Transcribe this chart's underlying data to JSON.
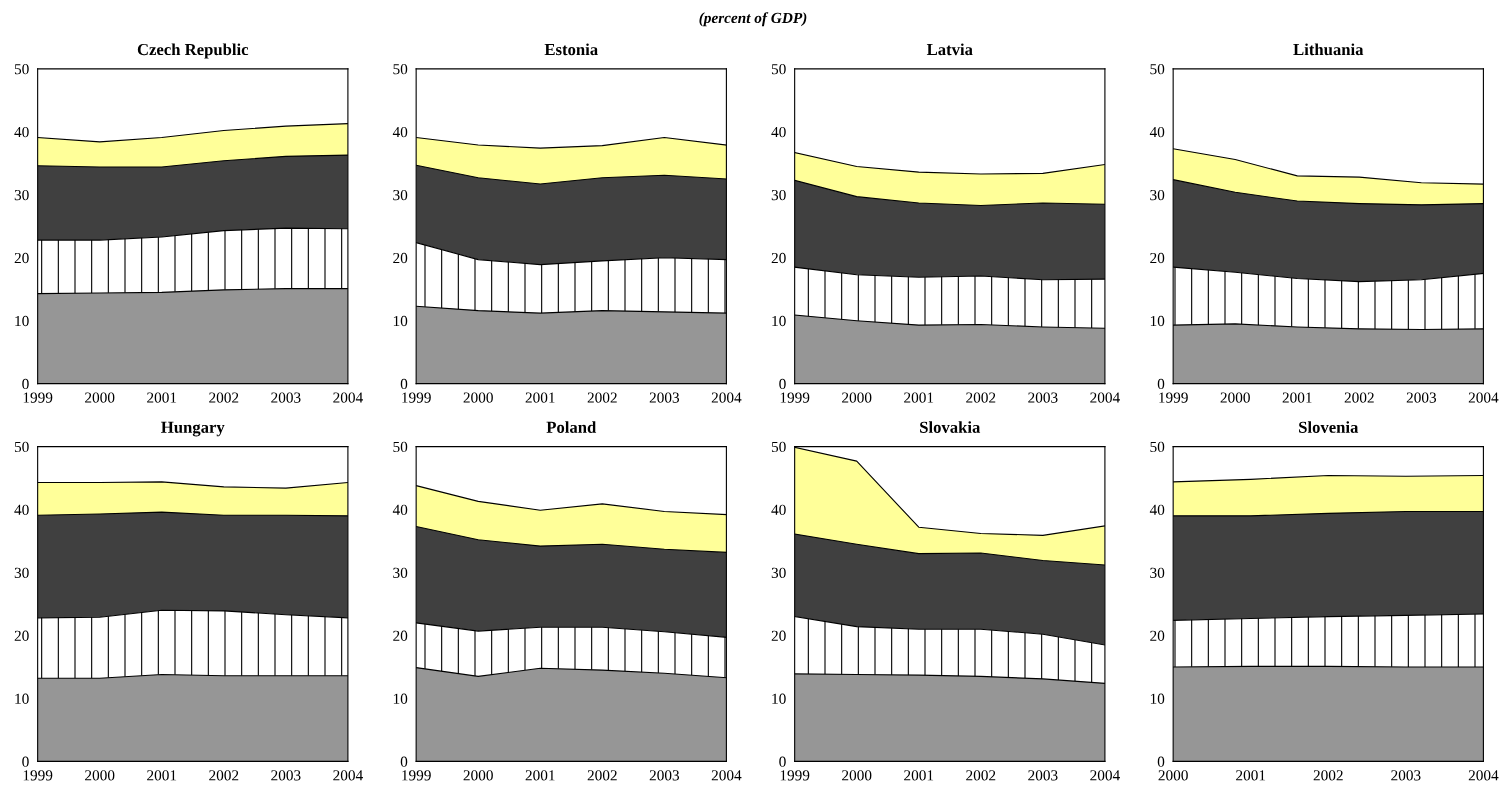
{
  "chart_data": [
    {
      "type": "area",
      "title": "Czech Republic",
      "stacked": true,
      "annotations": [
        "(percent of GDP)"
      ],
      "x": [
        1999,
        2000,
        2001,
        2002,
        2003,
        2004
      ],
      "xlim": [
        1999,
        2004
      ],
      "xticks": [
        1999,
        2000,
        2001,
        2002,
        2003,
        2004
      ],
      "ylim": [
        0,
        50
      ],
      "yticks": [
        0,
        10,
        20,
        30,
        40,
        50
      ],
      "series": [
        {
          "color": "#969696",
          "values": [
            14.3,
            14.4,
            14.5,
            14.9,
            15.1,
            15.1
          ]
        },
        {
          "color": "#ffffff",
          "values": [
            8.5,
            8.4,
            8.8,
            9.4,
            9.6,
            9.5
          ]
        },
        {
          "color": "#404040",
          "values": [
            11.8,
            11.6,
            11.1,
            11.1,
            11.4,
            11.7
          ]
        },
        {
          "color": "#ffff99",
          "values": [
            4.5,
            4.0,
            4.7,
            4.8,
            4.8,
            5.0
          ]
        }
      ]
    },
    {
      "type": "area",
      "title": "Estonia",
      "stacked": true,
      "x": [
        1999,
        2000,
        2001,
        2002,
        2003,
        2004
      ],
      "xlim": [
        1999,
        2004
      ],
      "xticks": [
        1999,
        2000,
        2001,
        2002,
        2003,
        2004
      ],
      "ylim": [
        0,
        50
      ],
      "yticks": [
        0,
        10,
        20,
        30,
        40,
        50
      ],
      "series": [
        {
          "color": "#969696",
          "values": [
            12.3,
            11.6,
            11.2,
            11.6,
            11.4,
            11.2
          ]
        },
        {
          "color": "#ffffff",
          "values": [
            10.1,
            8.1,
            7.7,
            7.9,
            8.6,
            8.5
          ]
        },
        {
          "color": "#404040",
          "values": [
            12.3,
            13.0,
            12.8,
            13.2,
            13.1,
            12.8
          ]
        },
        {
          "color": "#ffff99",
          "values": [
            4.4,
            5.2,
            5.7,
            5.1,
            6.0,
            5.4
          ]
        }
      ]
    },
    {
      "type": "area",
      "title": "Latvia",
      "stacked": true,
      "x": [
        1999,
        2000,
        2001,
        2002,
        2003,
        2004
      ],
      "xlim": [
        1999,
        2004
      ],
      "xticks": [
        1999,
        2000,
        2001,
        2002,
        2003,
        2004
      ],
      "ylim": [
        0,
        50
      ],
      "yticks": [
        0,
        10,
        20,
        30,
        40,
        50
      ],
      "series": [
        {
          "color": "#969696",
          "values": [
            10.9,
            10.0,
            9.3,
            9.4,
            9.0,
            8.8
          ]
        },
        {
          "color": "#ffffff",
          "values": [
            7.6,
            7.3,
            7.6,
            7.7,
            7.5,
            7.8
          ]
        },
        {
          "color": "#404040",
          "values": [
            13.8,
            12.4,
            11.8,
            11.2,
            12.2,
            11.9
          ]
        },
        {
          "color": "#ffff99",
          "values": [
            4.4,
            4.8,
            4.9,
            5.0,
            4.7,
            6.3
          ]
        }
      ]
    },
    {
      "type": "area",
      "title": "Lithuania",
      "stacked": true,
      "x": [
        1999,
        2000,
        2001,
        2002,
        2003,
        2004
      ],
      "xlim": [
        1999,
        2004
      ],
      "xticks": [
        1999,
        2000,
        2001,
        2002,
        2003,
        2004
      ],
      "ylim": [
        0,
        50
      ],
      "yticks": [
        0,
        10,
        20,
        30,
        40,
        50
      ],
      "series": [
        {
          "color": "#969696",
          "values": [
            9.3,
            9.5,
            9.0,
            8.7,
            8.6,
            8.7
          ]
        },
        {
          "color": "#ffffff",
          "values": [
            9.2,
            8.2,
            7.7,
            7.5,
            7.9,
            8.8
          ]
        },
        {
          "color": "#404040",
          "values": [
            13.9,
            12.7,
            12.3,
            12.4,
            11.9,
            11.1
          ]
        },
        {
          "color": "#ffff99",
          "values": [
            4.9,
            5.2,
            4.0,
            4.2,
            3.5,
            3.1
          ]
        }
      ]
    },
    {
      "type": "area",
      "title": "Hungary",
      "stacked": true,
      "x": [
        1999,
        2000,
        2001,
        2002,
        2003,
        2004
      ],
      "xlim": [
        1999,
        2004
      ],
      "xticks": [
        1999,
        2000,
        2001,
        2002,
        2003,
        2004
      ],
      "ylim": [
        0,
        50
      ],
      "yticks": [
        0,
        10,
        20,
        30,
        40,
        50
      ],
      "series": [
        {
          "color": "#969696",
          "values": [
            13.2,
            13.2,
            13.8,
            13.6,
            13.6,
            13.6
          ]
        },
        {
          "color": "#ffffff",
          "values": [
            9.6,
            9.7,
            10.2,
            10.3,
            9.7,
            9.2
          ]
        },
        {
          "color": "#404040",
          "values": [
            16.3,
            16.4,
            15.6,
            15.2,
            15.8,
            16.2
          ]
        },
        {
          "color": "#ffff99",
          "values": [
            5.2,
            5.0,
            4.8,
            4.5,
            4.3,
            5.3
          ]
        }
      ]
    },
    {
      "type": "area",
      "title": "Poland",
      "stacked": true,
      "x": [
        1999,
        2000,
        2001,
        2002,
        2003,
        2004
      ],
      "xlim": [
        1999,
        2004
      ],
      "xticks": [
        1999,
        2000,
        2001,
        2002,
        2003,
        2004
      ],
      "ylim": [
        0,
        50
      ],
      "yticks": [
        0,
        10,
        20,
        30,
        40,
        50
      ],
      "series": [
        {
          "color": "#969696",
          "values": [
            14.9,
            13.5,
            14.8,
            14.5,
            14.0,
            13.3
          ]
        },
        {
          "color": "#ffffff",
          "values": [
            7.1,
            7.2,
            6.5,
            6.8,
            6.6,
            6.4
          ]
        },
        {
          "color": "#404040",
          "values": [
            15.3,
            14.5,
            12.9,
            13.2,
            13.1,
            13.5
          ]
        },
        {
          "color": "#ffff99",
          "values": [
            6.5,
            6.1,
            5.7,
            6.4,
            6.0,
            6.0
          ]
        }
      ]
    },
    {
      "type": "area",
      "title": "Slovakia",
      "stacked": true,
      "x": [
        1999,
        2000,
        2001,
        2002,
        2003,
        2004
      ],
      "xlim": [
        1999,
        2004
      ],
      "xticks": [
        1999,
        2000,
        2001,
        2002,
        2003,
        2004
      ],
      "ylim": [
        0,
        50
      ],
      "yticks": [
        0,
        10,
        20,
        30,
        40,
        50
      ],
      "series": [
        {
          "color": "#969696",
          "values": [
            13.9,
            13.8,
            13.7,
            13.5,
            13.1,
            12.4
          ]
        },
        {
          "color": "#ffffff",
          "values": [
            9.1,
            7.6,
            7.3,
            7.5,
            7.1,
            6.1
          ]
        },
        {
          "color": "#404040",
          "values": [
            13.1,
            13.1,
            12.0,
            12.1,
            11.7,
            12.7
          ]
        },
        {
          "color": "#ffff99",
          "values": [
            13.8,
            13.2,
            4.2,
            3.1,
            4.0,
            6.2
          ]
        }
      ]
    },
    {
      "type": "area",
      "title": "Slovenia",
      "stacked": true,
      "x": [
        2000,
        2001,
        2002,
        2003,
        2004
      ],
      "xlim": [
        2000,
        2004
      ],
      "xticks": [
        2000,
        2001,
        2002,
        2003,
        2004
      ],
      "ylim": [
        0,
        50
      ],
      "yticks": [
        0,
        10,
        20,
        30,
        40,
        50
      ],
      "series": [
        {
          "color": "#969696",
          "values": [
            15.0,
            15.1,
            15.1,
            15.0,
            15.0
          ]
        },
        {
          "color": "#ffffff",
          "values": [
            7.4,
            7.6,
            7.9,
            8.2,
            8.4
          ]
        },
        {
          "color": "#404040",
          "values": [
            16.6,
            16.3,
            16.4,
            16.5,
            16.3
          ]
        },
        {
          "color": "#ffff99",
          "values": [
            5.4,
            5.8,
            6.0,
            5.6,
            5.7
          ]
        }
      ]
    }
  ]
}
